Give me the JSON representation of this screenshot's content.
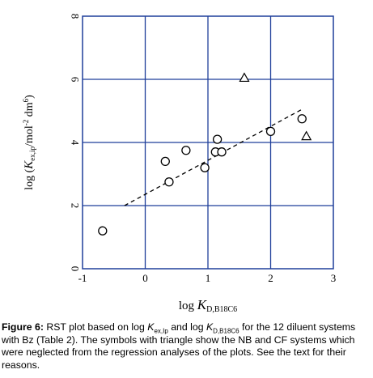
{
  "chart_data": {
    "type": "scatter",
    "x_ticks": [
      "-1",
      "0",
      "1",
      "2",
      "3"
    ],
    "y_ticks": [
      "0",
      "2",
      "4",
      "6",
      "8"
    ],
    "xlim": [
      -1,
      3
    ],
    "ylim": [
      0,
      8
    ],
    "grid": true,
    "xlabel": {
      "main": "log ",
      "var": "K",
      "sub": "D,B18C6"
    },
    "ylabel": {
      "pre": "log (",
      "var": "K",
      "sub": "ex,ip",
      "post": "/mol",
      "sup1": "-2",
      "mid": " dm",
      "sup2": "6",
      "end": ")"
    },
    "series": [
      {
        "marker": "circle",
        "points": [
          {
            "x": -0.68,
            "y": 1.2
          },
          {
            "x": 0.32,
            "y": 3.4
          },
          {
            "x": 0.38,
            "y": 2.75
          },
          {
            "x": 0.65,
            "y": 3.75
          },
          {
            "x": 0.95,
            "y": 3.2
          },
          {
            "x": 1.12,
            "y": 3.7
          },
          {
            "x": 1.15,
            "y": 4.1
          },
          {
            "x": 1.22,
            "y": 3.7
          },
          {
            "x": 2.0,
            "y": 4.35
          },
          {
            "x": 2.5,
            "y": 4.75
          }
        ]
      },
      {
        "marker": "triangle",
        "points": [
          {
            "x": 1.58,
            "y": 6.05
          },
          {
            "x": 2.57,
            "y": 4.2
          }
        ]
      }
    ],
    "regression_line": {
      "style": "dashed",
      "x": [
        -0.33,
        2.5
      ],
      "y": [
        2.0,
        5.05
      ]
    }
  },
  "caption": {
    "label": "Figure 6:",
    "t1": " RST plot based on log ",
    "k1": "K",
    "k1sub": "ex,Ip",
    "t2": " and log ",
    "k2": "K",
    "k2sub": "D,B18C6",
    "t3": " for the 12 diluent systems with Bz (Table 2). The symbols with triangle show the NB and CF systems which were neglected from the regression analyses of the plots. See the text for their reasons."
  }
}
